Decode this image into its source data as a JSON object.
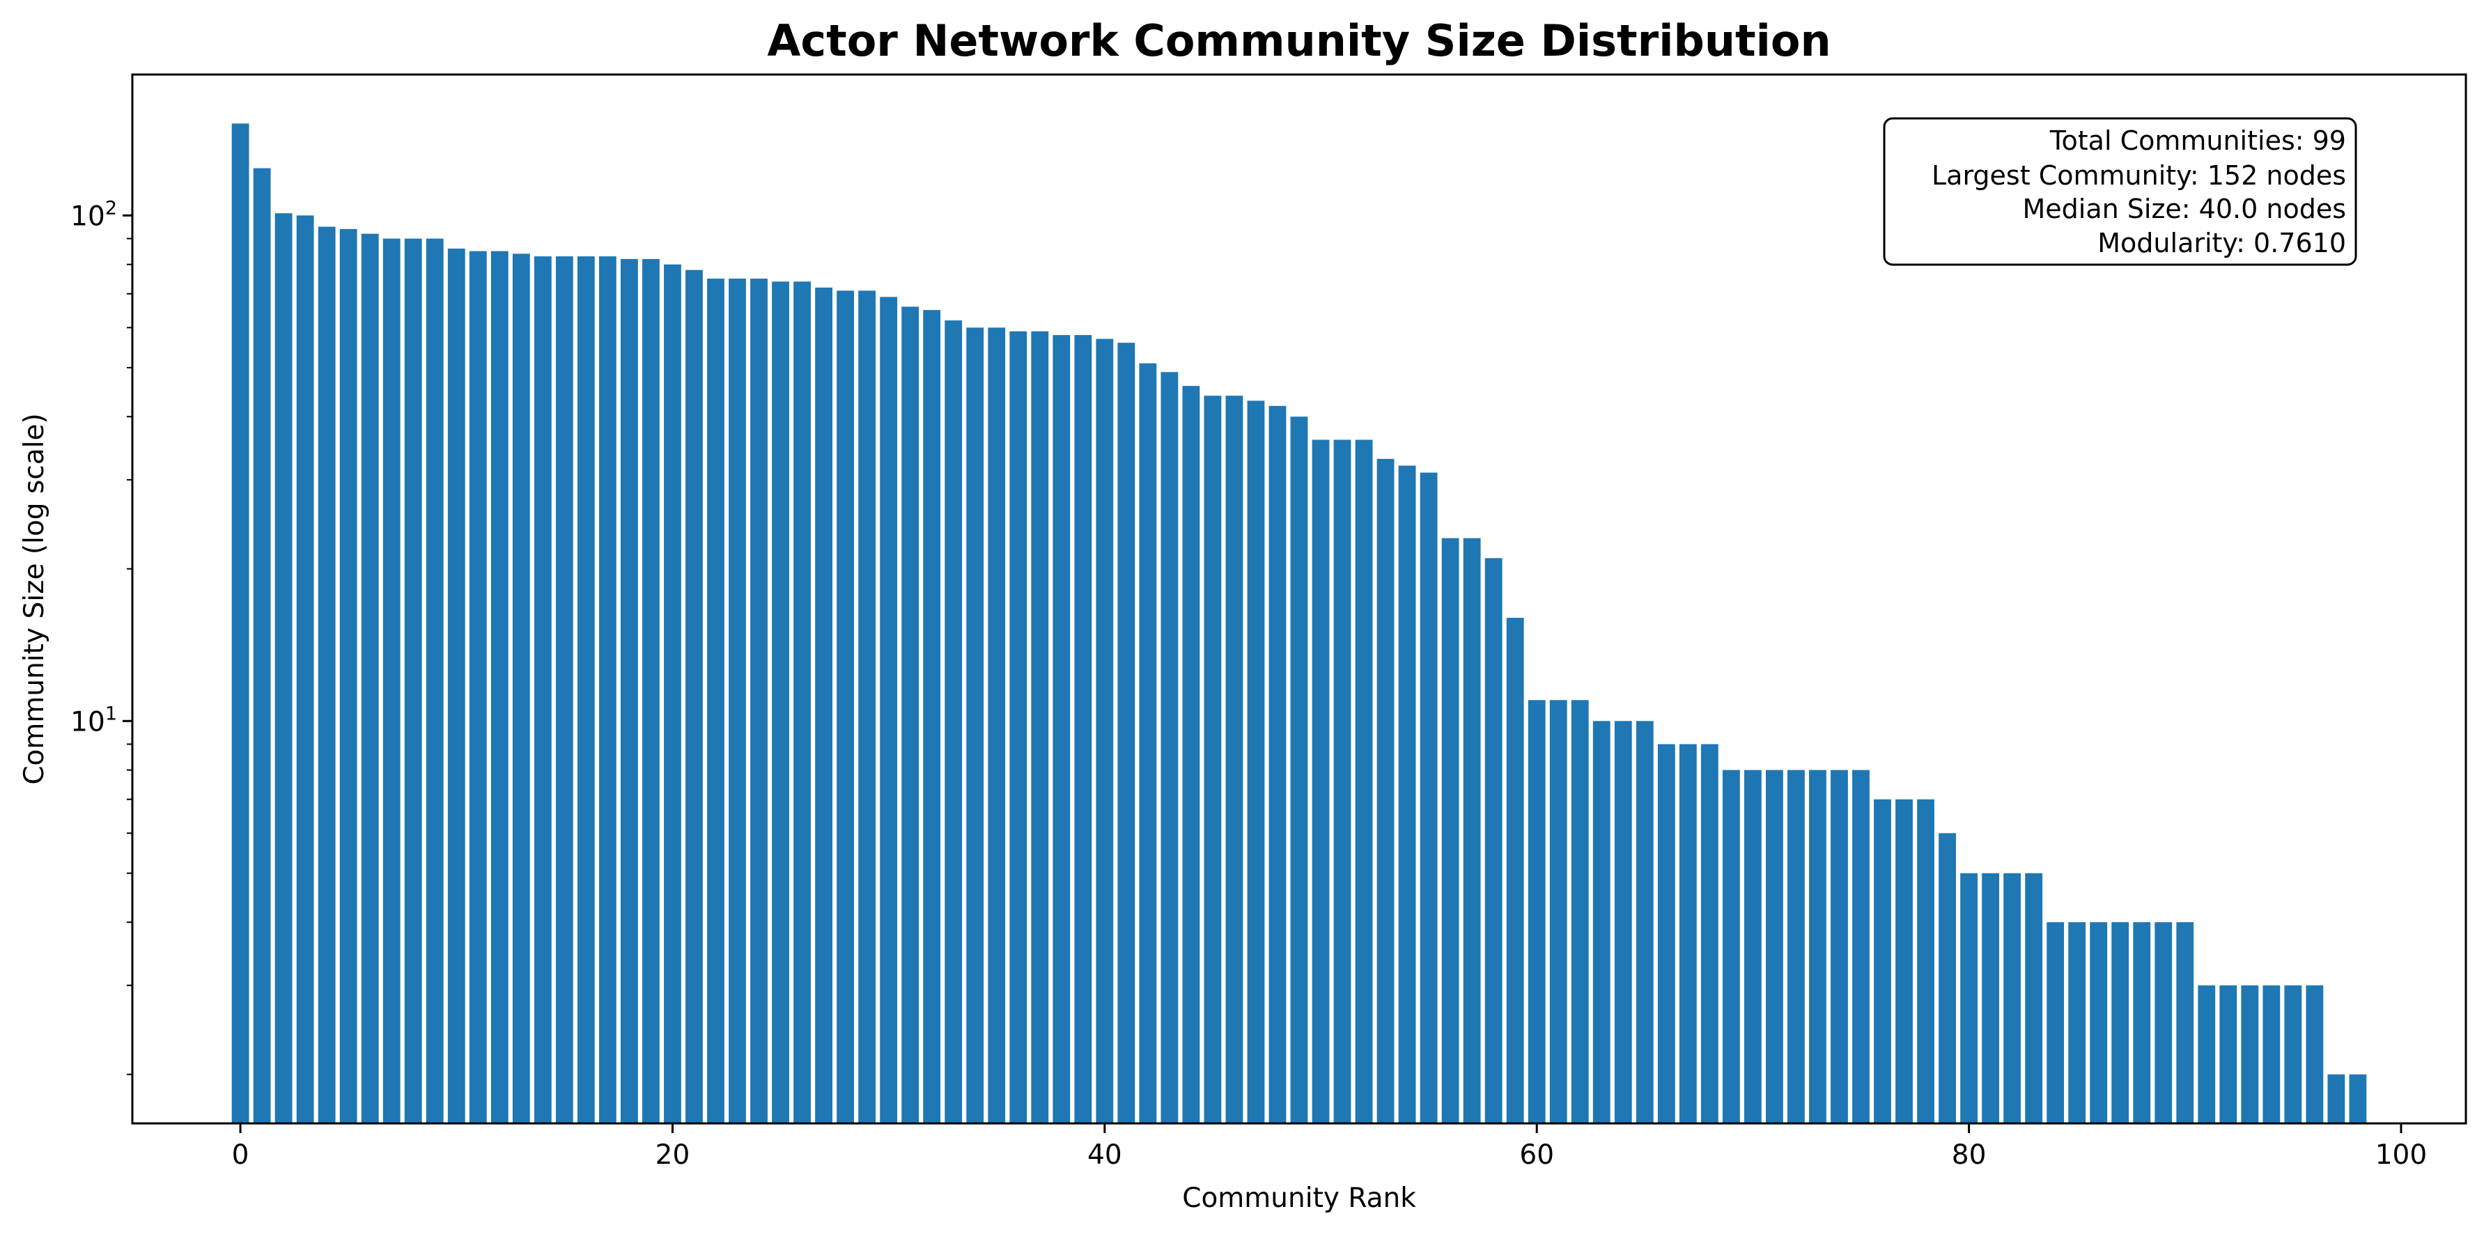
{
  "chart_data": {
    "type": "bar",
    "title": "Actor Network Community Size Distribution",
    "xlabel": "Community Rank",
    "ylabel": "Community Size (log scale)",
    "yscale": "log",
    "xlim": [
      -5,
      103
    ],
    "ylim": [
      1.6,
      190
    ],
    "xticks": [
      {
        "value": 0,
        "label": "0"
      },
      {
        "value": 20,
        "label": "20"
      },
      {
        "value": 40,
        "label": "40"
      },
      {
        "value": 60,
        "label": "60"
      },
      {
        "value": 80,
        "label": "80"
      },
      {
        "value": 100,
        "label": "100"
      }
    ],
    "yticks": [
      {
        "value": 10,
        "base": "10",
        "exp": "1"
      },
      {
        "value": 100,
        "base": "10",
        "exp": "2"
      }
    ],
    "bar_color": "#1f77b4",
    "grid": false,
    "x": [
      0,
      1,
      2,
      3,
      4,
      5,
      6,
      7,
      8,
      9,
      10,
      11,
      12,
      13,
      14,
      15,
      16,
      17,
      18,
      19,
      20,
      21,
      22,
      23,
      24,
      25,
      26,
      27,
      28,
      29,
      30,
      31,
      32,
      33,
      34,
      35,
      36,
      37,
      38,
      39,
      40,
      41,
      42,
      43,
      44,
      45,
      46,
      47,
      48,
      49,
      50,
      51,
      52,
      53,
      54,
      55,
      56,
      57,
      58,
      59,
      60,
      61,
      62,
      63,
      64,
      65,
      66,
      67,
      68,
      69,
      70,
      71,
      72,
      73,
      74,
      75,
      76,
      77,
      78,
      79,
      80,
      81,
      82,
      83,
      84,
      85,
      86,
      87,
      88,
      89,
      90,
      91,
      92,
      93,
      94,
      95,
      96,
      97,
      98
    ],
    "values": [
      152,
      124,
      101,
      100,
      95,
      94,
      92,
      90,
      90,
      90,
      86,
      85,
      85,
      84,
      83,
      83,
      83,
      83,
      82,
      82,
      80,
      78,
      75,
      75,
      75,
      74,
      74,
      72,
      71,
      71,
      69,
      66,
      65,
      62,
      60,
      60,
      59,
      59,
      58,
      58,
      57,
      56,
      51,
      49,
      46,
      44,
      44,
      43,
      42,
      40,
      36,
      36,
      36,
      33,
      32,
      31,
      23,
      23,
      21,
      16,
      11,
      11,
      11,
      10,
      10,
      10,
      9,
      9,
      9,
      8,
      8,
      8,
      8,
      8,
      8,
      8,
      7,
      7,
      7,
      6,
      5,
      5,
      5,
      5,
      4,
      4,
      4,
      4,
      4,
      4,
      4,
      3,
      3,
      3,
      3,
      3,
      3,
      2,
      2
    ],
    "info_box": {
      "placement": "top-right",
      "lines": [
        "Total Communities: 99",
        "Largest Community: 152 nodes",
        "Median Size: 40.0 nodes",
        "Modularity: 0.7610"
      ]
    }
  }
}
